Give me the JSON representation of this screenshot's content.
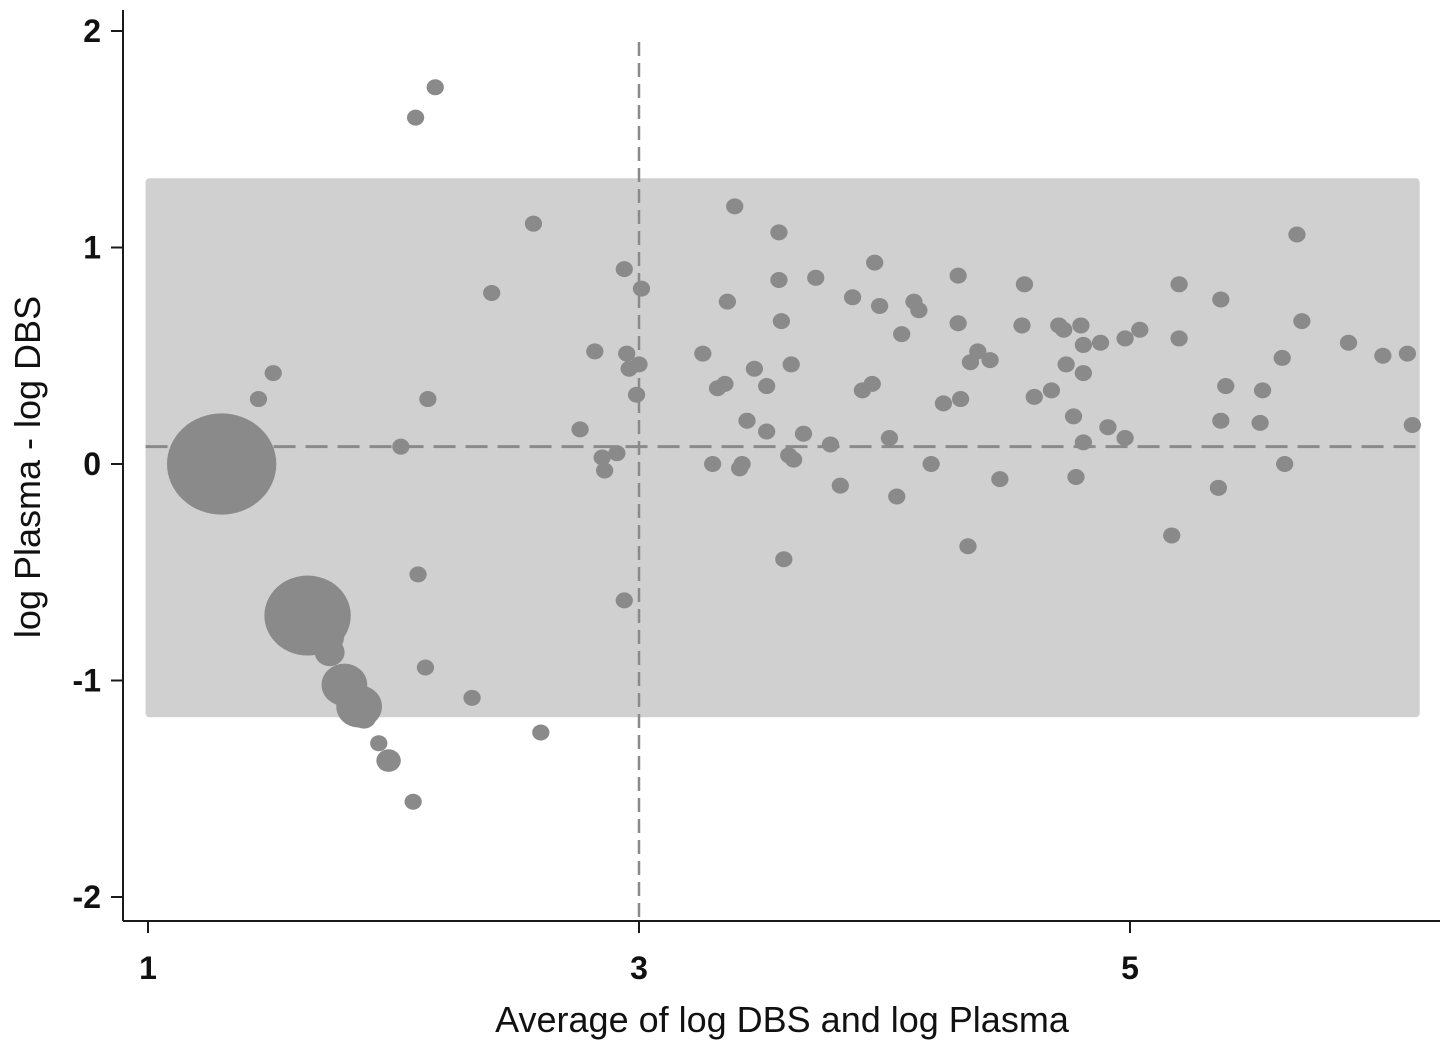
{
  "chart_data": {
    "type": "scatter",
    "title": "",
    "xlabel": "Average of log DBS and log Plasma",
    "ylabel": "log Plasma - log DBS",
    "xlim": [
      0.9,
      6.2
    ],
    "ylim": [
      -2.1,
      2.1
    ],
    "x_ticks": [
      1,
      3,
      5
    ],
    "y_ticks": [
      -2,
      -1,
      0,
      1,
      2
    ],
    "x_tick_labels": [
      "1",
      "3",
      "5"
    ],
    "y_tick_labels": [
      "-2",
      "-1",
      "0",
      "1",
      "2"
    ],
    "grid": false,
    "agreement_band": {
      "lower": -1.17,
      "upper": 1.32,
      "x_from": 0.99,
      "x_to": 6.18,
      "color": "#d0d0d0"
    },
    "mean_difference": 0.08,
    "reference_x": 3.0,
    "colors": {
      "points": "#8a8a8a",
      "band": "#d0d0d0",
      "lines": "#8a8a8a"
    },
    "points": [
      {
        "x": 1.3,
        "y": 0.0,
        "w": 40
      },
      {
        "x": 1.65,
        "y": -0.7,
        "w": 25
      },
      {
        "x": 1.72,
        "y": -0.8,
        "w": 5
      },
      {
        "x": 1.74,
        "y": -0.87,
        "w": 3
      },
      {
        "x": 1.8,
        "y": -1.02,
        "w": 7
      },
      {
        "x": 1.86,
        "y": -1.12,
        "w": 7
      },
      {
        "x": 1.88,
        "y": -1.17,
        "w": 2
      },
      {
        "x": 1.94,
        "y": -1.29,
        "w": 1
      },
      {
        "x": 1.98,
        "y": -1.37,
        "w": 2
      },
      {
        "x": 2.08,
        "y": -1.56,
        "w": 1
      },
      {
        "x": 2.1,
        "y": -0.51,
        "w": 1
      },
      {
        "x": 2.13,
        "y": -0.94,
        "w": 1
      },
      {
        "x": 2.32,
        "y": -1.08,
        "w": 1
      },
      {
        "x": 2.6,
        "y": -1.24,
        "w": 1
      },
      {
        "x": 1.45,
        "y": 0.3,
        "w": 1
      },
      {
        "x": 1.51,
        "y": 0.42,
        "w": 1
      },
      {
        "x": 2.03,
        "y": 0.08,
        "w": 1
      },
      {
        "x": 2.14,
        "y": 0.3,
        "w": 1
      },
      {
        "x": 2.09,
        "y": 1.6,
        "w": 1
      },
      {
        "x": 2.17,
        "y": 1.74,
        "w": 1
      },
      {
        "x": 2.4,
        "y": 0.79,
        "w": 1
      },
      {
        "x": 2.57,
        "y": 1.11,
        "w": 1
      },
      {
        "x": 2.76,
        "y": 0.16,
        "w": 1
      },
      {
        "x": 2.82,
        "y": 0.52,
        "w": 1
      },
      {
        "x": 2.85,
        "y": 0.03,
        "w": 1
      },
      {
        "x": 2.86,
        "y": -0.03,
        "w": 1
      },
      {
        "x": 2.91,
        "y": 0.05,
        "w": 1
      },
      {
        "x": 2.94,
        "y": 0.9,
        "w": 1
      },
      {
        "x": 2.95,
        "y": 0.51,
        "w": 1
      },
      {
        "x": 2.96,
        "y": 0.44,
        "w": 1
      },
      {
        "x": 2.94,
        "y": -0.63,
        "w": 1
      },
      {
        "x": 2.99,
        "y": 0.32,
        "w": 1
      },
      {
        "x": 3.0,
        "y": 0.46,
        "w": 1
      },
      {
        "x": 3.01,
        "y": 0.81,
        "w": 1
      },
      {
        "x": 3.26,
        "y": 0.51,
        "w": 1
      },
      {
        "x": 3.3,
        "y": 0.0,
        "w": 1
      },
      {
        "x": 3.32,
        "y": 0.35,
        "w": 1
      },
      {
        "x": 3.35,
        "y": 0.37,
        "w": 1
      },
      {
        "x": 3.36,
        "y": 0.75,
        "w": 1
      },
      {
        "x": 3.39,
        "y": 1.19,
        "w": 1
      },
      {
        "x": 3.41,
        "y": -0.02,
        "w": 1
      },
      {
        "x": 3.42,
        "y": 0.0,
        "w": 1
      },
      {
        "x": 3.44,
        "y": 0.2,
        "w": 1
      },
      {
        "x": 3.47,
        "y": 0.44,
        "w": 1
      },
      {
        "x": 3.52,
        "y": 0.36,
        "w": 1
      },
      {
        "x": 3.52,
        "y": 0.15,
        "w": 1
      },
      {
        "x": 3.57,
        "y": 1.07,
        "w": 1
      },
      {
        "x": 3.57,
        "y": 0.85,
        "w": 1
      },
      {
        "x": 3.58,
        "y": 0.66,
        "w": 1
      },
      {
        "x": 3.59,
        "y": -0.44,
        "w": 1
      },
      {
        "x": 3.61,
        "y": 0.04,
        "w": 1
      },
      {
        "x": 3.62,
        "y": 0.46,
        "w": 1
      },
      {
        "x": 3.63,
        "y": 0.02,
        "w": 1
      },
      {
        "x": 3.67,
        "y": 0.14,
        "w": 1
      },
      {
        "x": 3.72,
        "y": 0.86,
        "w": 1
      },
      {
        "x": 3.78,
        "y": 0.09,
        "w": 1
      },
      {
        "x": 3.82,
        "y": -0.1,
        "w": 1
      },
      {
        "x": 3.87,
        "y": 0.77,
        "w": 1
      },
      {
        "x": 3.91,
        "y": 0.34,
        "w": 1
      },
      {
        "x": 3.95,
        "y": 0.37,
        "w": 1
      },
      {
        "x": 3.96,
        "y": 0.93,
        "w": 1
      },
      {
        "x": 3.98,
        "y": 0.73,
        "w": 1
      },
      {
        "x": 4.02,
        "y": 0.12,
        "w": 1
      },
      {
        "x": 4.05,
        "y": -0.15,
        "w": 1
      },
      {
        "x": 4.07,
        "y": 0.6,
        "w": 1
      },
      {
        "x": 4.12,
        "y": 0.75,
        "w": 1
      },
      {
        "x": 4.14,
        "y": 0.71,
        "w": 1
      },
      {
        "x": 4.19,
        "y": 0.0,
        "w": 1
      },
      {
        "x": 4.24,
        "y": 0.28,
        "w": 1
      },
      {
        "x": 4.3,
        "y": 0.87,
        "w": 1
      },
      {
        "x": 4.3,
        "y": 0.65,
        "w": 1
      },
      {
        "x": 4.31,
        "y": 0.3,
        "w": 1
      },
      {
        "x": 4.34,
        "y": -0.38,
        "w": 1
      },
      {
        "x": 4.35,
        "y": 0.47,
        "w": 1
      },
      {
        "x": 4.38,
        "y": 0.52,
        "w": 1
      },
      {
        "x": 4.43,
        "y": 0.48,
        "w": 1
      },
      {
        "x": 4.47,
        "y": -0.07,
        "w": 1
      },
      {
        "x": 4.56,
        "y": 0.64,
        "w": 1
      },
      {
        "x": 4.57,
        "y": 0.83,
        "w": 1
      },
      {
        "x": 4.61,
        "y": 0.31,
        "w": 1
      },
      {
        "x": 4.68,
        "y": 0.34,
        "w": 1
      },
      {
        "x": 4.71,
        "y": 0.64,
        "w": 1
      },
      {
        "x": 4.73,
        "y": 0.62,
        "w": 1
      },
      {
        "x": 4.74,
        "y": 0.46,
        "w": 1
      },
      {
        "x": 4.77,
        "y": 0.22,
        "w": 1
      },
      {
        "x": 4.78,
        "y": -0.06,
        "w": 1
      },
      {
        "x": 4.8,
        "y": 0.64,
        "w": 1
      },
      {
        "x": 4.81,
        "y": 0.55,
        "w": 1
      },
      {
        "x": 4.81,
        "y": 0.42,
        "w": 1
      },
      {
        "x": 4.81,
        "y": 0.1,
        "w": 1
      },
      {
        "x": 4.88,
        "y": 0.56,
        "w": 1
      },
      {
        "x": 4.91,
        "y": 0.17,
        "w": 1
      },
      {
        "x": 4.98,
        "y": 0.58,
        "w": 1
      },
      {
        "x": 4.98,
        "y": 0.12,
        "w": 1
      },
      {
        "x": 5.04,
        "y": 0.62,
        "w": 1
      },
      {
        "x": 5.17,
        "y": -0.33,
        "w": 1
      },
      {
        "x": 5.2,
        "y": 0.83,
        "w": 1
      },
      {
        "x": 5.2,
        "y": 0.58,
        "w": 1
      },
      {
        "x": 5.36,
        "y": -0.11,
        "w": 1
      },
      {
        "x": 5.37,
        "y": 0.2,
        "w": 1
      },
      {
        "x": 5.37,
        "y": 0.76,
        "w": 1
      },
      {
        "x": 5.39,
        "y": 0.36,
        "w": 1
      },
      {
        "x": 5.53,
        "y": 0.19,
        "w": 1
      },
      {
        "x": 5.54,
        "y": 0.34,
        "w": 1
      },
      {
        "x": 5.62,
        "y": 0.49,
        "w": 1
      },
      {
        "x": 5.63,
        "y": 0.0,
        "w": 1
      },
      {
        "x": 5.68,
        "y": 1.06,
        "w": 1
      },
      {
        "x": 5.7,
        "y": 0.66,
        "w": 1
      },
      {
        "x": 5.89,
        "y": 0.56,
        "w": 1
      },
      {
        "x": 6.03,
        "y": 0.5,
        "w": 1
      },
      {
        "x": 6.13,
        "y": 0.51,
        "w": 1
      },
      {
        "x": 6.15,
        "y": 0.18,
        "w": 1
      }
    ]
  }
}
